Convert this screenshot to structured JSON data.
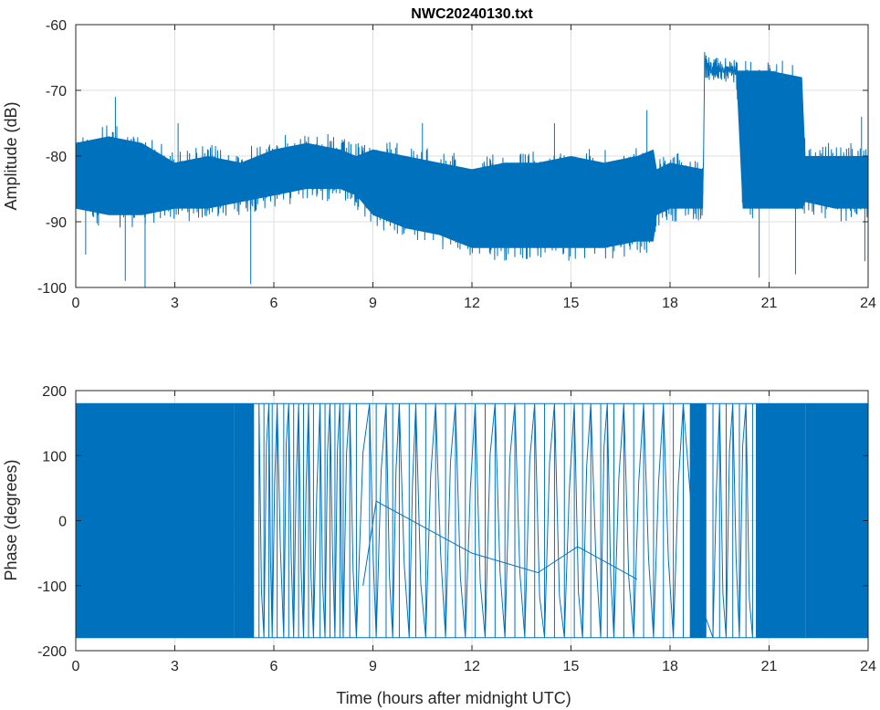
{
  "chart_data": [
    {
      "type": "line",
      "title": "NWC20240130.txt",
      "xlabel": "",
      "ylabel": "Amplitude (dB)",
      "xlim": [
        0,
        24
      ],
      "ylim": [
        -100,
        -60
      ],
      "xticks": [
        "0",
        "3",
        "6",
        "9",
        "12",
        "15",
        "18",
        "21",
        "24"
      ],
      "yticks": [
        "-60",
        "-70",
        "-80",
        "-90",
        "-100"
      ],
      "grid": true,
      "color": "#0072bd",
      "series": [
        {
          "x": [
            0,
            1,
            2,
            3,
            4,
            5,
            6,
            7,
            8,
            8.5,
            9,
            10,
            11,
            12,
            13,
            14,
            15,
            16,
            17,
            17.5,
            17.6,
            18,
            19,
            19.05,
            19.2,
            20,
            20.2,
            21,
            22,
            22.1,
            23,
            24
          ],
          "upper": [
            -76,
            -75,
            -76,
            -79,
            -78,
            -79,
            -77,
            -76,
            -77,
            -78,
            -77,
            -78,
            -79,
            -80,
            -79,
            -79,
            -78,
            -79,
            -78,
            -77,
            -80,
            -79,
            -80,
            -63,
            -65,
            -65,
            -65,
            -65,
            -66,
            -78,
            -78,
            -78
          ],
          "lower": [
            -90,
            -91,
            -91,
            -90,
            -90,
            -89,
            -88,
            -87,
            -87,
            -88,
            -91,
            -93,
            -94,
            -96,
            -96,
            -96,
            -96,
            -96,
            -95,
            -95,
            -91,
            -90,
            -90,
            -68,
            -69,
            -69,
            -90,
            -90,
            -90,
            -89,
            -90,
            -90
          ],
          "spikes_min": [
            [
              0.3,
              -95
            ],
            [
              1.5,
              -99
            ],
            [
              2.1,
              -100
            ],
            [
              5.3,
              -99.5
            ],
            [
              20.7,
              -98.5
            ],
            [
              21.8,
              -98
            ],
            [
              23.9,
              -96
            ]
          ],
          "spikes_max": [
            [
              1.2,
              -71
            ],
            [
              3.1,
              -75
            ],
            [
              10.5,
              -75
            ],
            [
              14.5,
              -75
            ],
            [
              17.3,
              -73
            ],
            [
              23.8,
              -74
            ]
          ]
        }
      ]
    },
    {
      "type": "line",
      "title": "",
      "xlabel": "Time (hours after midnight UTC)",
      "ylabel": "Phase (degrees)",
      "xlim": [
        0,
        24
      ],
      "ylim": [
        -200,
        200
      ],
      "xticks": [
        "0",
        "3",
        "6",
        "9",
        "12",
        "15",
        "18",
        "21",
        "24"
      ],
      "yticks": [
        "200",
        "100",
        "0",
        "-100",
        "-200"
      ],
      "grid": true,
      "color": "#0072bd",
      "series": [
        {
          "y_wrap": [
            -180,
            180
          ],
          "dense_ranges": [
            [
              0,
              4.8
            ],
            [
              4.8,
              5.4
            ],
            [
              18.6,
              19.1
            ],
            [
              20.6,
              22.1
            ],
            [
              22.1,
              24
            ]
          ],
          "wrap_times": [
            5.55,
            5.7,
            5.85,
            5.95,
            6.1,
            6.3,
            6.45,
            6.6,
            6.75,
            6.9,
            7.05,
            7.2,
            7.4,
            7.55,
            7.7,
            7.85,
            8.0,
            8.1,
            8.3,
            8.5,
            8.9,
            9.1,
            9.4,
            9.6,
            9.8,
            10.1,
            10.3,
            10.6,
            10.9,
            11.2,
            11.5,
            11.8,
            12.1,
            12.4,
            12.7,
            13.0,
            13.3,
            13.6,
            13.9,
            14.2,
            14.5,
            14.8,
            15.1,
            15.35,
            15.6,
            15.9,
            16.1,
            16.3,
            16.6,
            16.9,
            17.2,
            17.5,
            17.8,
            18.1,
            18.4,
            19.3,
            19.5,
            19.7,
            19.9,
            20.1,
            20.3,
            20.5
          ],
          "smooth_min": [
            [
              8.7,
              -100
            ],
            [
              9.1,
              30
            ],
            [
              12.0,
              -50
            ],
            [
              14.0,
              -80
            ],
            [
              15.2,
              -40
            ],
            [
              17.0,
              -90
            ]
          ]
        }
      ]
    }
  ]
}
